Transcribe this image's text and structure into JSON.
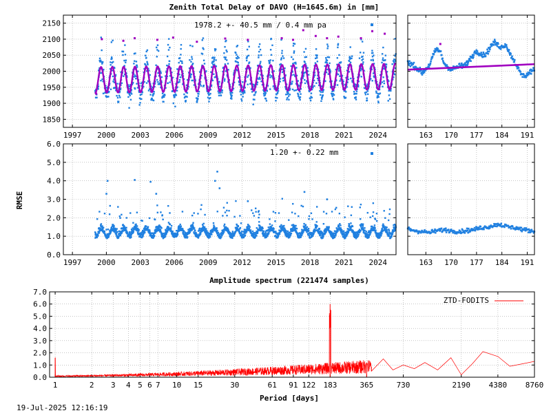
{
  "figure": {
    "title": "Zenith Total Delay of DAVO (H=1645.6m) in [mm]",
    "timestamp": "19-Jul-2025 12:16:19"
  },
  "colors": {
    "data": "#2080e0",
    "model": "#a000c0",
    "outlier": "#a000c0",
    "spectrum": "#ff0000",
    "grid": "#a0a0a0"
  },
  "chart_data": [
    {
      "type": "scatter",
      "id": "ztd-long",
      "annotation": "1978.2 +-  40.5 mm /  0.4 mm pa",
      "xlabel": "",
      "ylabel": "",
      "xlim": [
        1996.2,
        2025.6
      ],
      "ylim": [
        1825,
        2175
      ],
      "xticks": [
        "1997",
        "2000",
        "2003",
        "2006",
        "2009",
        "2012",
        "2015",
        "2018",
        "2021",
        "2024"
      ],
      "yticks": [
        "1850",
        "1900",
        "1950",
        "2000",
        "2050",
        "2100",
        "2150"
      ],
      "grid": true,
      "data_start": 1999.0,
      "mean": 1978.2,
      "amplitude": 40.5,
      "trend_per_year": 0.4,
      "seasonal_model_amplitude": 40,
      "outliers": [
        {
          "x": 1999.1,
          "y": 1930
        },
        {
          "x": 1999.6,
          "y": 2100
        },
        {
          "x": 2001.5,
          "y": 2095
        },
        {
          "x": 2002.5,
          "y": 2103
        },
        {
          "x": 2004.5,
          "y": 2098
        },
        {
          "x": 2005.9,
          "y": 2105
        },
        {
          "x": 2008.0,
          "y": 2092
        },
        {
          "x": 2010.5,
          "y": 2102
        },
        {
          "x": 2012.5,
          "y": 2098
        },
        {
          "x": 2015.5,
          "y": 2103
        },
        {
          "x": 2016.5,
          "y": 2098
        },
        {
          "x": 2017.4,
          "y": 2128
        },
        {
          "x": 2018.5,
          "y": 2110
        },
        {
          "x": 2019.5,
          "y": 2103
        },
        {
          "x": 2020.5,
          "y": 2108
        },
        {
          "x": 2022.5,
          "y": 2103
        },
        {
          "x": 2023.5,
          "y": 2125
        },
        {
          "x": 2024.6,
          "y": 2117
        }
      ]
    },
    {
      "type": "scatter",
      "id": "ztd-recent",
      "xlim": [
        158,
        193
      ],
      "ylim": [
        1825,
        2175
      ],
      "xticks": [
        "163",
        "170",
        "177",
        "184",
        "191"
      ],
      "grid": true,
      "series": [
        {
          "x": [
            158,
            160,
            162,
            164,
            165,
            166,
            167,
            168,
            170,
            172,
            174,
            176,
            177,
            178,
            179,
            180,
            181,
            182,
            183,
            184,
            185,
            186,
            187,
            188,
            189,
            190,
            191,
            192,
            193
          ],
          "y": [
            2030,
            2015,
            1995,
            2020,
            2050,
            2070,
            2060,
            2025,
            2005,
            2015,
            2020,
            2050,
            2065,
            2055,
            2050,
            2060,
            2080,
            2090,
            2080,
            2075,
            2085,
            2060,
            2040,
            2020,
            1995,
            1985,
            1990,
            2000,
            2005
          ]
        }
      ],
      "model": {
        "x": [
          158,
          193
        ],
        "y": [
          2005,
          2022
        ]
      },
      "outliers": [
        {
          "x": 167,
          "y": 2085
        }
      ]
    },
    {
      "type": "scatter",
      "id": "rmse-long",
      "annotation": "1.20 +-  0.22 mm",
      "ylabel": "RMSE",
      "xlim": [
        1996.2,
        2025.6
      ],
      "ylim": [
        0.0,
        6.0
      ],
      "xticks": [
        "1997",
        "2000",
        "2003",
        "2006",
        "2009",
        "2012",
        "2015",
        "2018",
        "2021",
        "2024"
      ],
      "yticks": [
        "0.0",
        "1.0",
        "2.0",
        "3.0",
        "4.0",
        "5.0",
        "6.0"
      ],
      "grid": true,
      "data_start": 1999.0,
      "mean": 1.2,
      "std": 0.22,
      "spikes": [
        {
          "x": 2000.1,
          "y": 4.0
        },
        {
          "x": 2000.0,
          "y": 3.3
        },
        {
          "x": 2002.5,
          "y": 4.05
        },
        {
          "x": 2003.9,
          "y": 3.95
        },
        {
          "x": 2004.4,
          "y": 3.3
        },
        {
          "x": 2009.8,
          "y": 4.5
        },
        {
          "x": 2009.6,
          "y": 4.0
        },
        {
          "x": 2010.0,
          "y": 3.6
        },
        {
          "x": 2017.5,
          "y": 3.4
        },
        {
          "x": 2019.5,
          "y": 3.0
        },
        {
          "x": 2012.5,
          "y": 2.9
        }
      ]
    },
    {
      "type": "scatter",
      "id": "rmse-recent",
      "xlim": [
        158,
        193
      ],
      "ylim": [
        0.0,
        6.0
      ],
      "xticks": [
        "163",
        "170",
        "177",
        "184",
        "191"
      ],
      "grid": true,
      "series": [
        {
          "x": [
            158,
            160,
            162,
            164,
            166,
            168,
            170,
            172,
            174,
            176,
            178,
            180,
            182,
            183,
            184,
            186,
            188,
            190,
            192,
            193
          ],
          "y": [
            1.4,
            1.3,
            1.25,
            1.2,
            1.3,
            1.35,
            1.3,
            1.25,
            1.3,
            1.35,
            1.45,
            1.5,
            1.6,
            1.65,
            1.6,
            1.5,
            1.45,
            1.35,
            1.3,
            1.25
          ]
        }
      ]
    },
    {
      "type": "line",
      "id": "spectrum",
      "title": "Amplitude spectrum (221474 samples)",
      "xlabel": "Period [days]",
      "legend": "ZTD-FODITS",
      "legend_position": "top-right",
      "xscale": "log",
      "xlim": [
        0.9,
        8760
      ],
      "ylim": [
        0.0,
        7.0
      ],
      "xticks": [
        1,
        2,
        3,
        4,
        5,
        6,
        7,
        10,
        15,
        30,
        61,
        91,
        122,
        183,
        365,
        730,
        2190,
        4380,
        8760
      ],
      "xticklabels": [
        "1",
        "2",
        "3",
        "4",
        "5",
        "6",
        "7",
        "10",
        "15",
        "30",
        "61",
        "91",
        "122",
        "183",
        "365",
        "730",
        "2190",
        "4380",
        "8760"
      ],
      "yticks": [
        "0.0",
        "1.0",
        "2.0",
        "3.0",
        "4.0",
        "5.0",
        "6.0",
        "7.0"
      ],
      "grid": true,
      "peaks": [
        {
          "x": 1,
          "y": 1.6
        },
        {
          "x": 182.6,
          "y": 6.0
        },
        {
          "x": 365,
          "y": 1.2
        }
      ],
      "tail": {
        "x": [
          400,
          500,
          600,
          730,
          900,
          1100,
          1400,
          1800,
          2190,
          2700,
          3300,
          4380,
          5500,
          7000,
          8760
        ],
        "y": [
          0.5,
          1.5,
          0.6,
          1.0,
          0.7,
          1.2,
          0.6,
          1.6,
          0.2,
          1.1,
          2.1,
          1.7,
          0.9,
          1.1,
          1.3
        ]
      }
    }
  ]
}
